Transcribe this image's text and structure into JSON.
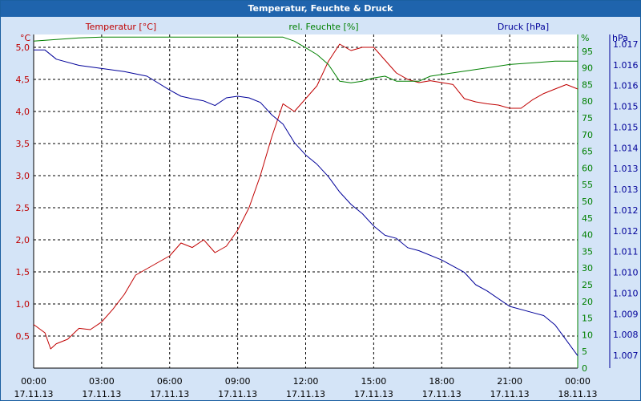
{
  "window": {
    "title": "Temperatur, Feuchte & Druck"
  },
  "colors": {
    "temperature": "#c00000",
    "humidity": "#008000",
    "pressure": "#000099",
    "grid": "#000000",
    "title_bar": "#1f64ad",
    "background": "#d4e4f7"
  },
  "chart_data": {
    "type": "line",
    "title": "Temperatur, Feuchte & Druck",
    "grid": true,
    "x_range": [
      "17.11.13 00:00",
      "18.11.13 00:00"
    ],
    "x_ticks": [
      {
        "time": "00:00",
        "date": "17.11.13"
      },
      {
        "time": "03:00",
        "date": "17.11.13"
      },
      {
        "time": "06:00",
        "date": "17.11.13"
      },
      {
        "time": "09:00",
        "date": "17.11.13"
      },
      {
        "time": "12:00",
        "date": "17.11.13"
      },
      {
        "time": "15:00",
        "date": "17.11.13"
      },
      {
        "time": "18:00",
        "date": "17.11.13"
      },
      {
        "time": "21:00",
        "date": "17.11.13"
      },
      {
        "time": "00:00",
        "date": "18.11.13"
      }
    ],
    "axes": {
      "left": {
        "unit": "°C",
        "label": "Temperatur [°C]",
        "ylim": [
          0.0,
          5.2
        ],
        "ticks": [
          "0,5",
          "1,0",
          "1,5",
          "2,0",
          "2,5",
          "3,0",
          "3,5",
          "4,0",
          "4,5",
          "5,0"
        ]
      },
      "right1": {
        "unit": "%",
        "label": "rel. Feuchte [%]",
        "ylim": [
          0,
          100
        ],
        "ticks": [
          "0",
          "5",
          "10",
          "15",
          "20",
          "25",
          "30",
          "35",
          "40",
          "45",
          "50",
          "55",
          "60",
          "65",
          "70",
          "75",
          "80",
          "85",
          "90",
          "95"
        ]
      },
      "right2": {
        "unit": "hPa",
        "label": "Druck [hPa]",
        "ylim": [
          1006.6,
          1017.4
        ],
        "ticks": [
          "1.007",
          "1.008",
          "1.009",
          "1.010",
          "1.010",
          "1.011",
          "1.012",
          "1.012",
          "1.013",
          "1.013",
          "1.014",
          "1.015",
          "1.015",
          "1.016",
          "1.016",
          "1.017"
        ]
      }
    },
    "series": [
      {
        "name": "Temperatur [°C]",
        "axis": "left",
        "x": [
          "17.11.13 00:00",
          "17.11.13 00:30",
          "17.11.13 00:45",
          "17.11.13 01:00",
          "17.11.13 01:30",
          "17.11.13 02:00",
          "17.11.13 02:30",
          "17.11.13 03:00",
          "17.11.13 03:30",
          "17.11.13 04:00",
          "17.11.13 04:30",
          "17.11.13 05:00",
          "17.11.13 05:30",
          "17.11.13 06:00",
          "17.11.13 06:30",
          "17.11.13 07:00",
          "17.11.13 07:30",
          "17.11.13 08:00",
          "17.11.13 08:30",
          "17.11.13 09:00",
          "17.11.13 09:30",
          "17.11.13 10:00",
          "17.11.13 10:30",
          "17.11.13 11:00",
          "17.11.13 11:30",
          "17.11.13 12:00",
          "17.11.13 12:30",
          "17.11.13 13:00",
          "17.11.13 13:30",
          "17.11.13 14:00",
          "17.11.13 14:30",
          "17.11.13 15:00",
          "17.11.13 15:30",
          "17.11.13 16:00",
          "17.11.13 16:30",
          "17.11.13 17:00",
          "17.11.13 17:30",
          "17.11.13 18:00",
          "17.11.13 18:30",
          "17.11.13 19:00",
          "17.11.13 19:30",
          "17.11.13 20:00",
          "17.11.13 20:30",
          "17.11.13 21:00",
          "17.11.13 21:30",
          "17.11.13 22:00",
          "17.11.13 22:30",
          "17.11.13 23:00",
          "17.11.13 23:30",
          "18.11.13 00:00"
        ],
        "values": [
          0.68,
          0.55,
          0.3,
          0.38,
          0.45,
          0.62,
          0.6,
          0.72,
          0.92,
          1.15,
          1.45,
          1.55,
          1.65,
          1.75,
          1.95,
          1.88,
          2.0,
          1.8,
          1.9,
          2.15,
          2.5,
          3.0,
          3.6,
          4.12,
          4.0,
          4.2,
          4.4,
          4.78,
          5.05,
          4.95,
          5.0,
          5.0,
          4.8,
          4.6,
          4.5,
          4.45,
          4.48,
          4.45,
          4.42,
          4.2,
          4.15,
          4.12,
          4.1,
          4.05,
          4.05,
          4.18,
          4.28,
          4.35,
          4.42,
          4.35
        ]
      },
      {
        "name": "rel. Feuchte [%]",
        "axis": "right1",
        "x": [
          "17.11.13 00:00",
          "17.11.13 01:00",
          "17.11.13 02:00",
          "17.11.13 03:00",
          "17.11.13 04:00",
          "17.11.13 05:00",
          "17.11.13 06:00",
          "17.11.13 07:00",
          "17.11.13 08:00",
          "17.11.13 09:00",
          "17.11.13 10:00",
          "17.11.13 11:00",
          "17.11.13 11:30",
          "17.11.13 12:00",
          "17.11.13 12:30",
          "17.11.13 13:00",
          "17.11.13 13:30",
          "17.11.13 14:00",
          "17.11.13 14:30",
          "17.11.13 15:00",
          "17.11.13 15:30",
          "17.11.13 16:00",
          "17.11.13 16:30",
          "17.11.13 17:00",
          "17.11.13 17:30",
          "17.11.13 18:00",
          "17.11.13 19:00",
          "17.11.13 20:00",
          "17.11.13 21:00",
          "17.11.13 22:00",
          "17.11.13 23:00",
          "18.11.13 00:00"
        ],
        "values": [
          98.0,
          98.5,
          99.0,
          99.2,
          99.2,
          99.2,
          99.2,
          99.2,
          99.2,
          99.2,
          99.2,
          99.2,
          98.0,
          96.0,
          94.0,
          91.0,
          86.0,
          85.5,
          86.0,
          87.0,
          87.5,
          86.0,
          86.0,
          86.0,
          87.5,
          88.0,
          89.0,
          90.0,
          91.0,
          91.5,
          92.0,
          92.0
        ]
      },
      {
        "name": "Druck [hPa]",
        "axis": "right2",
        "x": [
          "17.11.13 00:00",
          "17.11.13 00:30",
          "17.11.13 01:00",
          "17.11.13 02:00",
          "17.11.13 03:00",
          "17.11.13 04:00",
          "17.11.13 05:00",
          "17.11.13 06:00",
          "17.11.13 06:30",
          "17.11.13 07:00",
          "17.11.13 07:30",
          "17.11.13 08:00",
          "17.11.13 08:30",
          "17.11.13 09:00",
          "17.11.13 09:30",
          "17.11.13 10:00",
          "17.11.13 10:30",
          "17.11.13 11:00",
          "17.11.13 11:30",
          "17.11.13 12:00",
          "17.11.13 12:30",
          "17.11.13 13:00",
          "17.11.13 13:30",
          "17.11.13 14:00",
          "17.11.13 14:30",
          "17.11.13 15:00",
          "17.11.13 15:30",
          "17.11.13 16:00",
          "17.11.13 16:30",
          "17.11.13 17:00",
          "17.11.13 18:00",
          "17.11.13 19:00",
          "17.11.13 19:30",
          "17.11.13 20:00",
          "17.11.13 21:00",
          "17.11.13 22:00",
          "17.11.13 22:30",
          "17.11.13 23:00",
          "17.11.13 23:30",
          "18.11.13 00:00"
        ],
        "values": [
          1016.9,
          1016.9,
          1016.6,
          1016.4,
          1016.3,
          1016.2,
          1016.05,
          1015.6,
          1015.4,
          1015.32,
          1015.25,
          1015.1,
          1015.35,
          1015.4,
          1015.35,
          1015.2,
          1014.8,
          1014.5,
          1013.9,
          1013.5,
          1013.2,
          1012.8,
          1012.3,
          1011.9,
          1011.6,
          1011.2,
          1010.9,
          1010.8,
          1010.5,
          1010.4,
          1010.1,
          1009.7,
          1009.3,
          1009.1,
          1008.6,
          1008.4,
          1008.3,
          1008.0,
          1007.5,
          1007.0
        ]
      }
    ]
  }
}
